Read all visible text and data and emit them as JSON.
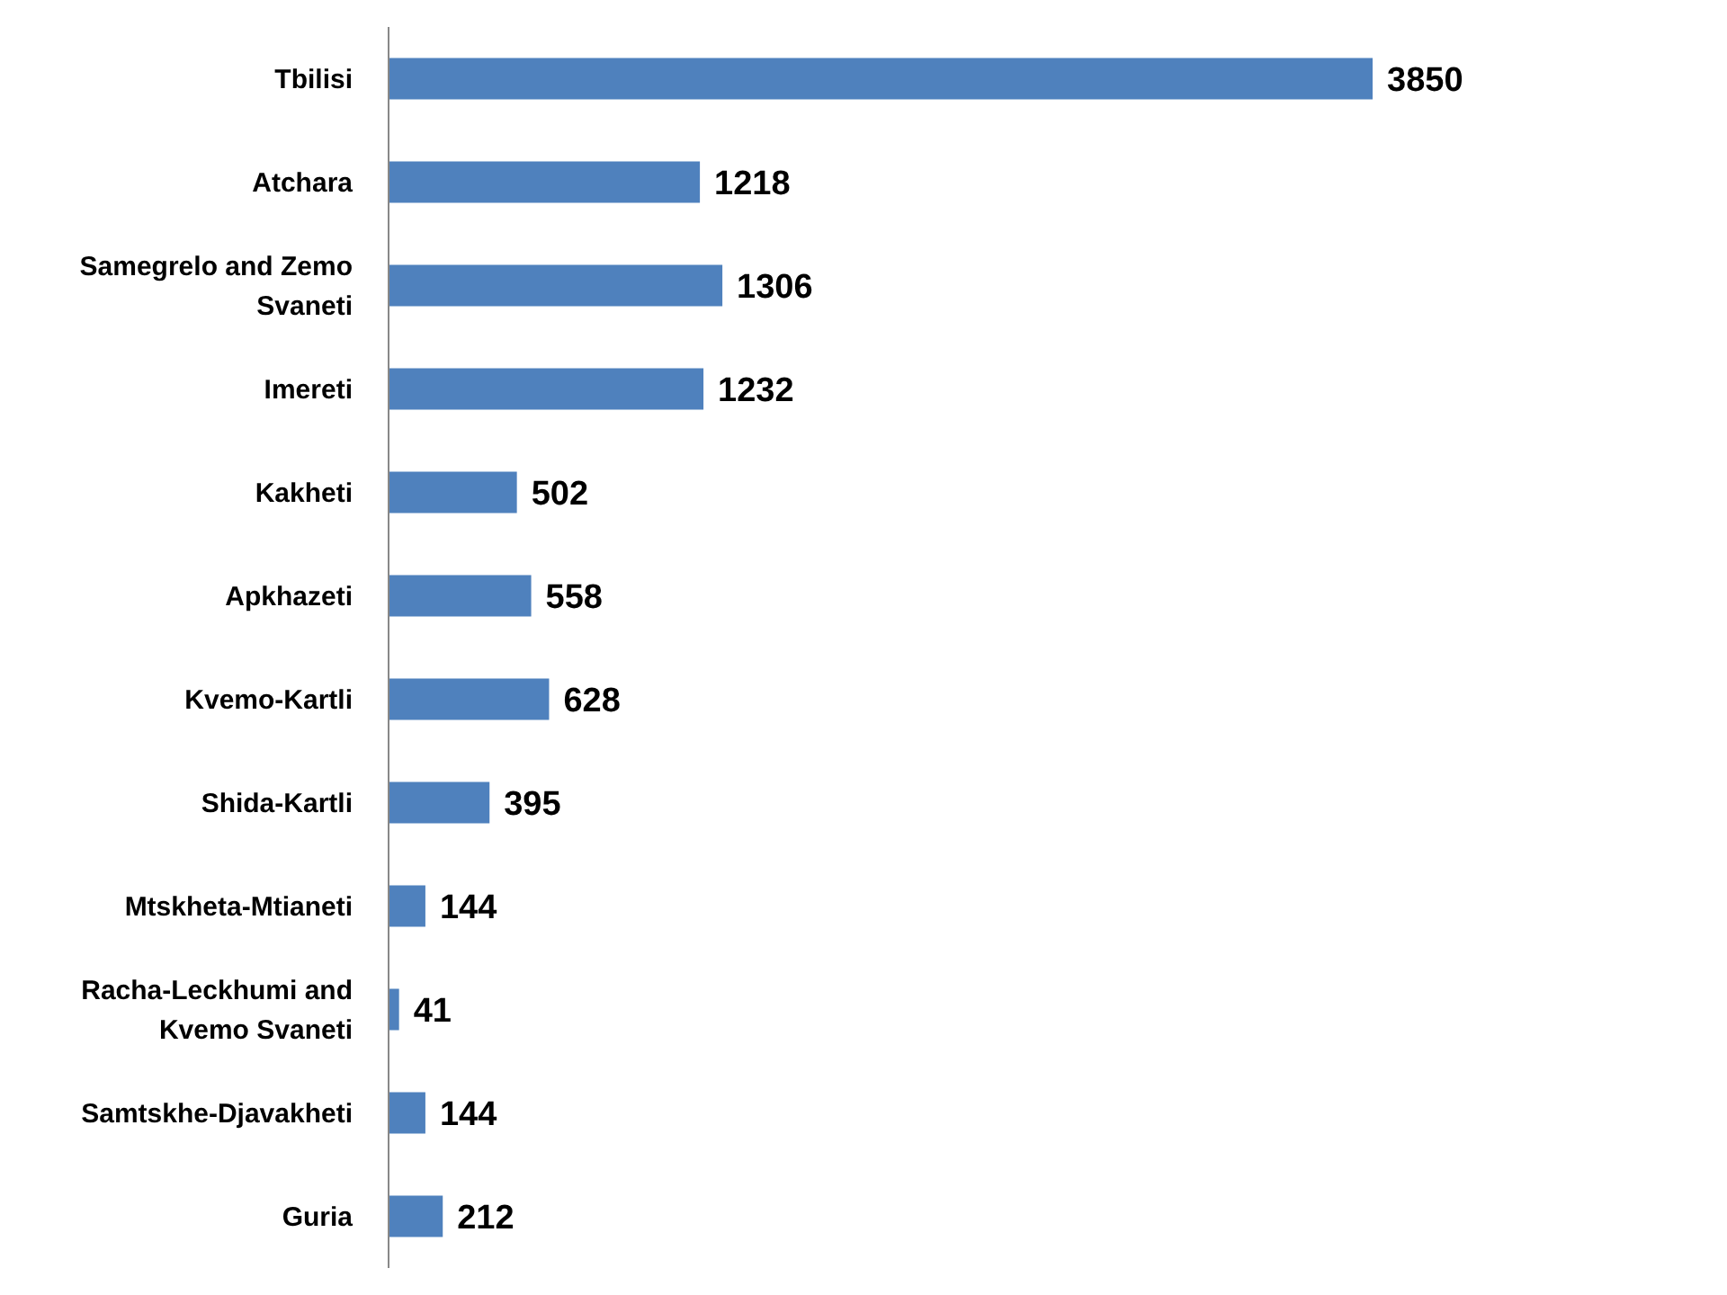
{
  "chart_data": {
    "type": "bar",
    "orientation": "horizontal",
    "categories": [
      "Tbilisi",
      "Atchara",
      "Samegrelo and Zemo Svaneti",
      "Imereti",
      "Kakheti",
      "Apkhazeti",
      "Kvemo-Kartli",
      "Shida-Kartli",
      "Mtskheta-Mtianeti",
      "Racha-Leckhumi and Kvemo Svaneti",
      "Samtskhe-Djavakheti",
      "Guria"
    ],
    "values": [
      3850,
      1218,
      1306,
      1232,
      502,
      558,
      628,
      395,
      144,
      41,
      144,
      212
    ],
    "color": "#4f81bd",
    "data_labels": true
  }
}
